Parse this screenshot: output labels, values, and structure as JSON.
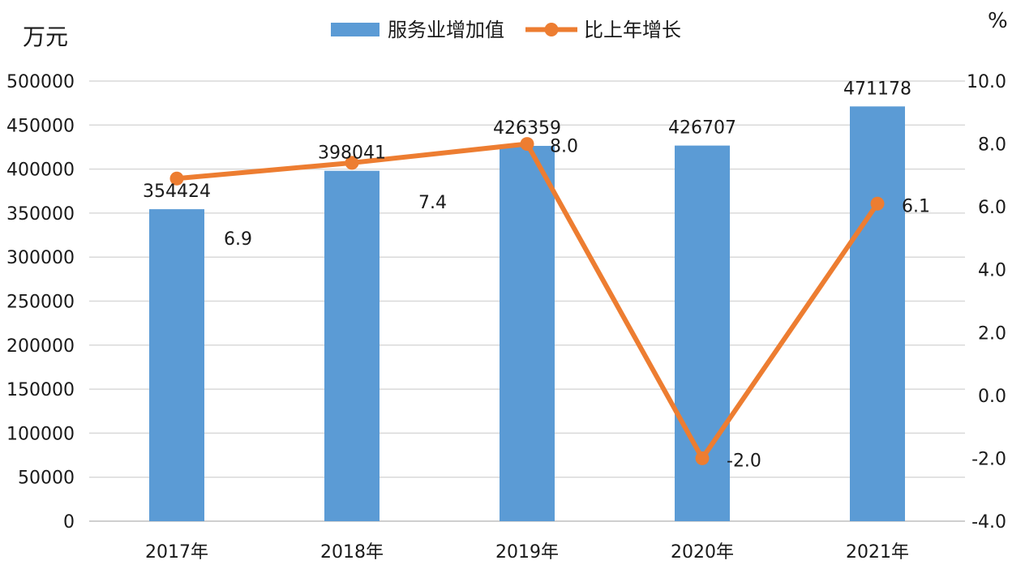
{
  "chart_data": {
    "type": "bar",
    "categories": [
      "2017年",
      "2018年",
      "2019年",
      "2020年",
      "2021年"
    ],
    "series": [
      {
        "name": "服务业增加值",
        "type": "bar",
        "axis": "left",
        "color": "#5b9bd5",
        "values": [
          354424,
          398041,
          426359,
          426707,
          471178
        ],
        "labels": [
          "354424",
          "398041",
          "426359",
          "426707",
          "471178"
        ]
      },
      {
        "name": "比上年增长",
        "type": "line",
        "axis": "right",
        "color": "#ed7d31",
        "values": [
          6.9,
          7.4,
          8.0,
          -2.0,
          6.1
        ],
        "labels": [
          "6.9",
          "7.4",
          "8.0",
          "-2.0",
          "6.1"
        ]
      }
    ],
    "y_left": {
      "unit_label": "万元",
      "min": 0,
      "max": 500000,
      "step": 50000,
      "ticks": [
        "0",
        "50000",
        "100000",
        "150000",
        "200000",
        "250000",
        "300000",
        "350000",
        "400000",
        "450000",
        "500000"
      ]
    },
    "y_right": {
      "unit_label": "%",
      "min": -4.0,
      "max": 10.0,
      "step": 2.0,
      "ticks": [
        "-4.0",
        "-2.0",
        "0.0",
        "2.0",
        "4.0",
        "6.0",
        "8.0",
        "10.0"
      ]
    },
    "grid": true,
    "legend_position": "top-center"
  }
}
